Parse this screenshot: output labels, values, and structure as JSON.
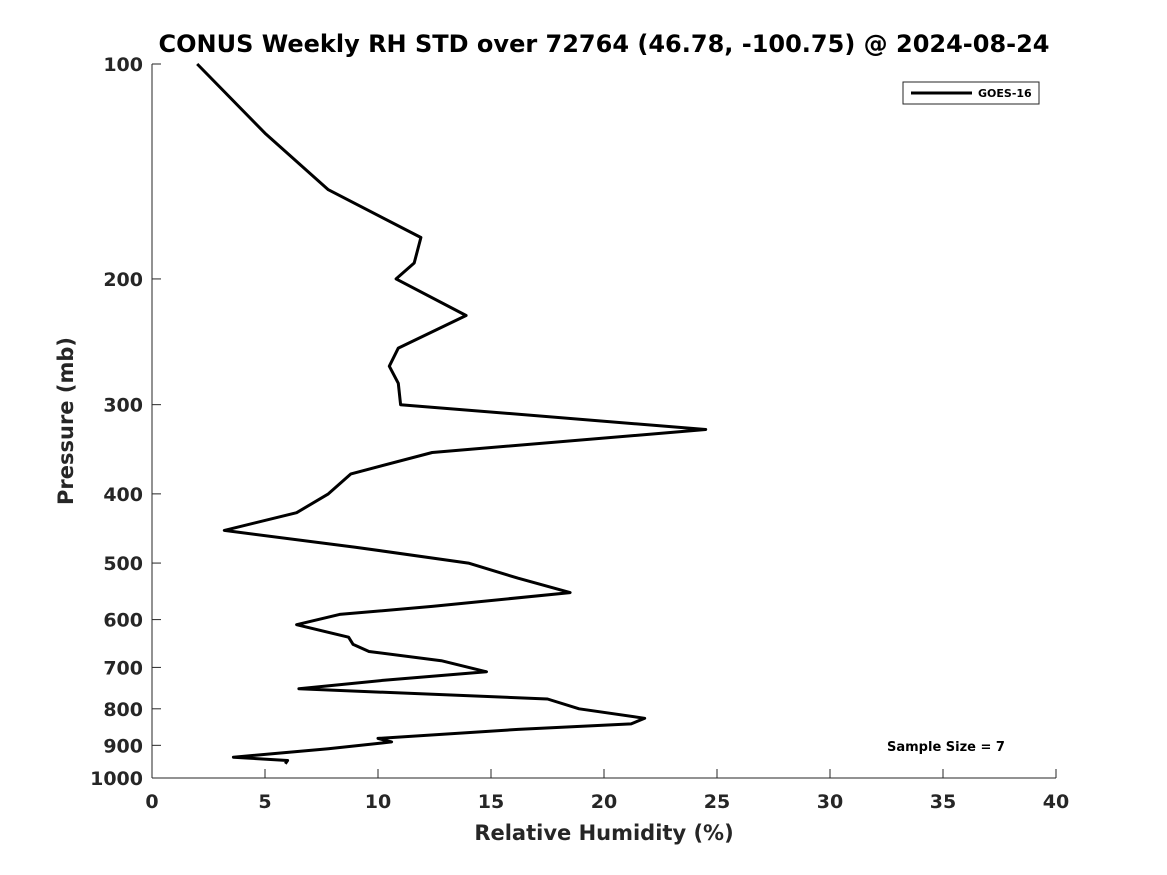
{
  "chart_data": {
    "type": "line",
    "title": "CONUS Weekly RH STD over 72764 (46.78, -100.75) @ 2024-08-24",
    "xlabel": "Relative Humidity (%)",
    "ylabel": "Pressure (mb)",
    "xlim": [
      0,
      40
    ],
    "ylim": [
      1000,
      100
    ],
    "yscale": "log",
    "x_ticks": [
      "0",
      "5",
      "10",
      "15",
      "20",
      "25",
      "30",
      "35",
      "40"
    ],
    "y_ticks": [
      "100",
      "200",
      "300",
      "400",
      "500",
      "600",
      "700",
      "800",
      "900",
      "1000"
    ],
    "grid": false,
    "legend_position": "top-right",
    "annotation": "Sample Size = 7",
    "line_color": "#000000",
    "series": [
      {
        "name": "GOES-16",
        "points": [
          [
            2.0,
            100
          ],
          [
            5.0,
            125
          ],
          [
            7.8,
            150
          ],
          [
            11.9,
            175
          ],
          [
            11.6,
            190
          ],
          [
            10.8,
            200
          ],
          [
            13.9,
            225
          ],
          [
            10.9,
            250
          ],
          [
            10.5,
            265
          ],
          [
            10.9,
            280
          ],
          [
            11.0,
            300
          ],
          [
            24.5,
            325
          ],
          [
            12.4,
            350
          ],
          [
            8.8,
            375
          ],
          [
            7.8,
            400
          ],
          [
            6.4,
            425
          ],
          [
            3.2,
            450
          ],
          [
            9.0,
            475
          ],
          [
            14.0,
            500
          ],
          [
            16.2,
            525
          ],
          [
            18.5,
            550
          ],
          [
            12.4,
            575
          ],
          [
            8.3,
            590
          ],
          [
            6.4,
            610
          ],
          [
            8.7,
            635
          ],
          [
            8.9,
            650
          ],
          [
            9.6,
            665
          ],
          [
            12.8,
            685
          ],
          [
            14.8,
            710
          ],
          [
            10.2,
            730
          ],
          [
            6.5,
            750
          ],
          [
            17.5,
            775
          ],
          [
            18.9,
            800
          ],
          [
            21.8,
            825
          ],
          [
            21.2,
            840
          ],
          [
            16.2,
            855
          ],
          [
            10.0,
            880
          ],
          [
            10.6,
            890
          ],
          [
            7.8,
            910
          ],
          [
            3.6,
            935
          ],
          [
            6.0,
            945
          ],
          [
            5.9,
            955
          ]
        ]
      }
    ]
  }
}
